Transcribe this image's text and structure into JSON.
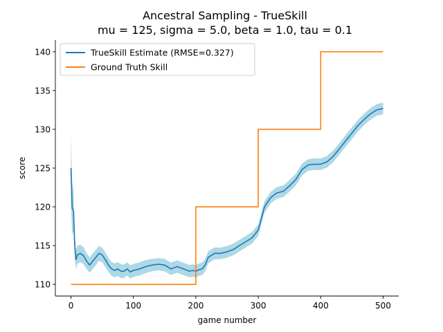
{
  "chart_data": {
    "type": "line",
    "title": "Ancestral Sampling - TrueSkill",
    "subtitle": "mu = 125, sigma = 5.0, beta = 1.0, tau = 0.1",
    "xlabel": "game number",
    "ylabel": "score",
    "xlim": [
      -25,
      525
    ],
    "ylim": [
      108.5,
      141.5
    ],
    "xticks": [
      0,
      100,
      200,
      300,
      400,
      500
    ],
    "yticks": [
      110,
      115,
      120,
      125,
      130,
      135,
      140
    ],
    "legend_position": "top-left",
    "grid": false,
    "series": [
      {
        "name": "TrueSkill Estimate (RMSE=0.327)",
        "color": "#1f77b4",
        "band_color": "#add8e6",
        "x": [
          0,
          2,
          4,
          6,
          8,
          10,
          15,
          20,
          25,
          30,
          35,
          40,
          45,
          50,
          55,
          60,
          65,
          70,
          75,
          80,
          85,
          90,
          95,
          100,
          110,
          120,
          130,
          140,
          150,
          160,
          170,
          180,
          190,
          195,
          200,
          205,
          210,
          215,
          220,
          230,
          240,
          250,
          260,
          270,
          280,
          290,
          295,
          300,
          305,
          310,
          320,
          330,
          340,
          350,
          360,
          370,
          380,
          390,
          400,
          410,
          420,
          430,
          440,
          450,
          460,
          470,
          480,
          490,
          500
        ],
        "y": [
          125.0,
          119.8,
          119.5,
          115.0,
          113.2,
          113.8,
          114.0,
          113.7,
          113.0,
          112.5,
          113.0,
          113.5,
          114.0,
          113.8,
          113.2,
          112.5,
          112.0,
          111.8,
          112.0,
          111.7,
          111.7,
          112.0,
          111.6,
          111.8,
          112.0,
          112.3,
          112.5,
          112.6,
          112.5,
          112.0,
          112.3,
          112.0,
          111.7,
          111.8,
          111.7,
          111.9,
          112.0,
          112.5,
          113.5,
          114.0,
          114.0,
          114.2,
          114.5,
          115.0,
          115.5,
          116.0,
          116.5,
          117.0,
          118.5,
          120.0,
          121.2,
          121.8,
          122.0,
          122.7,
          123.5,
          124.8,
          125.4,
          125.5,
          125.5,
          125.8,
          126.5,
          127.5,
          128.5,
          129.5,
          130.5,
          131.3,
          132.0,
          132.5,
          132.7
        ],
        "sigma": [
          4.5,
          3.5,
          2.6,
          1.6,
          1.3,
          1.2,
          1.1,
          1.1,
          1.0,
          1.0,
          1.0,
          1.0,
          0.95,
          0.95,
          0.95,
          0.9,
          0.9,
          0.9,
          0.9,
          0.9,
          0.85,
          0.85,
          0.85,
          0.85,
          0.85,
          0.85,
          0.8,
          0.8,
          0.8,
          0.8,
          0.8,
          0.8,
          0.8,
          0.8,
          0.8,
          0.8,
          0.8,
          0.8,
          0.8,
          0.75,
          0.75,
          0.75,
          0.75,
          0.75,
          0.75,
          0.75,
          0.75,
          0.75,
          0.75,
          0.75,
          0.75,
          0.75,
          0.75,
          0.75,
          0.75,
          0.75,
          0.75,
          0.75,
          0.75,
          0.75,
          0.75,
          0.75,
          0.75,
          0.75,
          0.75,
          0.75,
          0.75,
          0.75,
          0.75
        ]
      },
      {
        "name": "Ground Truth Skill",
        "color": "#ff7f0e",
        "x": [
          0,
          200,
          200,
          300,
          300,
          400,
          400,
          500
        ],
        "y": [
          110,
          110,
          120,
          120,
          130,
          130,
          140,
          140
        ]
      }
    ]
  }
}
